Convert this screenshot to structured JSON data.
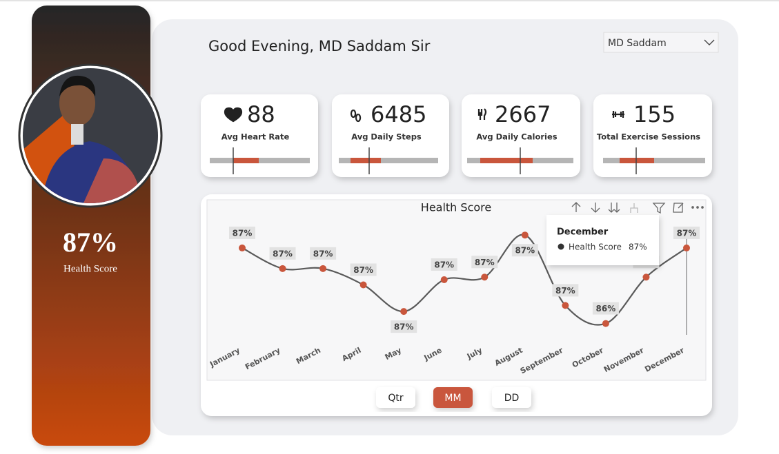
{
  "header": {
    "greeting": "Good Evening, MD Saddam Sir",
    "user_select": "MD Saddam"
  },
  "profile": {
    "score": "87%",
    "score_label": "Health Score"
  },
  "cards": [
    {
      "value": 88,
      "label": "Avg Heart Rate"
    },
    {
      "value": 6485,
      "label": "Avg Daily Steps"
    },
    {
      "value": 2667,
      "label": "Avg Daily Calories"
    },
    {
      "value": 155,
      "label": "Total Exercise Sessions"
    }
  ],
  "chart_data": {
    "type": "line",
    "title": "Health Score",
    "categories": [
      "January",
      "February",
      "March",
      "April",
      "May",
      "June",
      "July",
      "August",
      "September",
      "October",
      "November",
      "December"
    ],
    "series": [
      {
        "name": "Health Score",
        "color": "#c9563c",
        "values": [
          87.26,
          87.02,
          87.02,
          86.83,
          86.52,
          86.89,
          86.92,
          87.41,
          86.59,
          86.38,
          86.92,
          87.26
        ],
        "value_labels": [
          "87%",
          "87%",
          "87%",
          "87%",
          "87%",
          "87%",
          "87%",
          "87%",
          "87%",
          "86%",
          "87%",
          "87%"
        ]
      }
    ],
    "line_color": "#5a5a5a",
    "ylim": [
      86.2,
      87.5
    ]
  },
  "buttons": [
    "Qtr",
    "MM",
    "DD"
  ]
}
